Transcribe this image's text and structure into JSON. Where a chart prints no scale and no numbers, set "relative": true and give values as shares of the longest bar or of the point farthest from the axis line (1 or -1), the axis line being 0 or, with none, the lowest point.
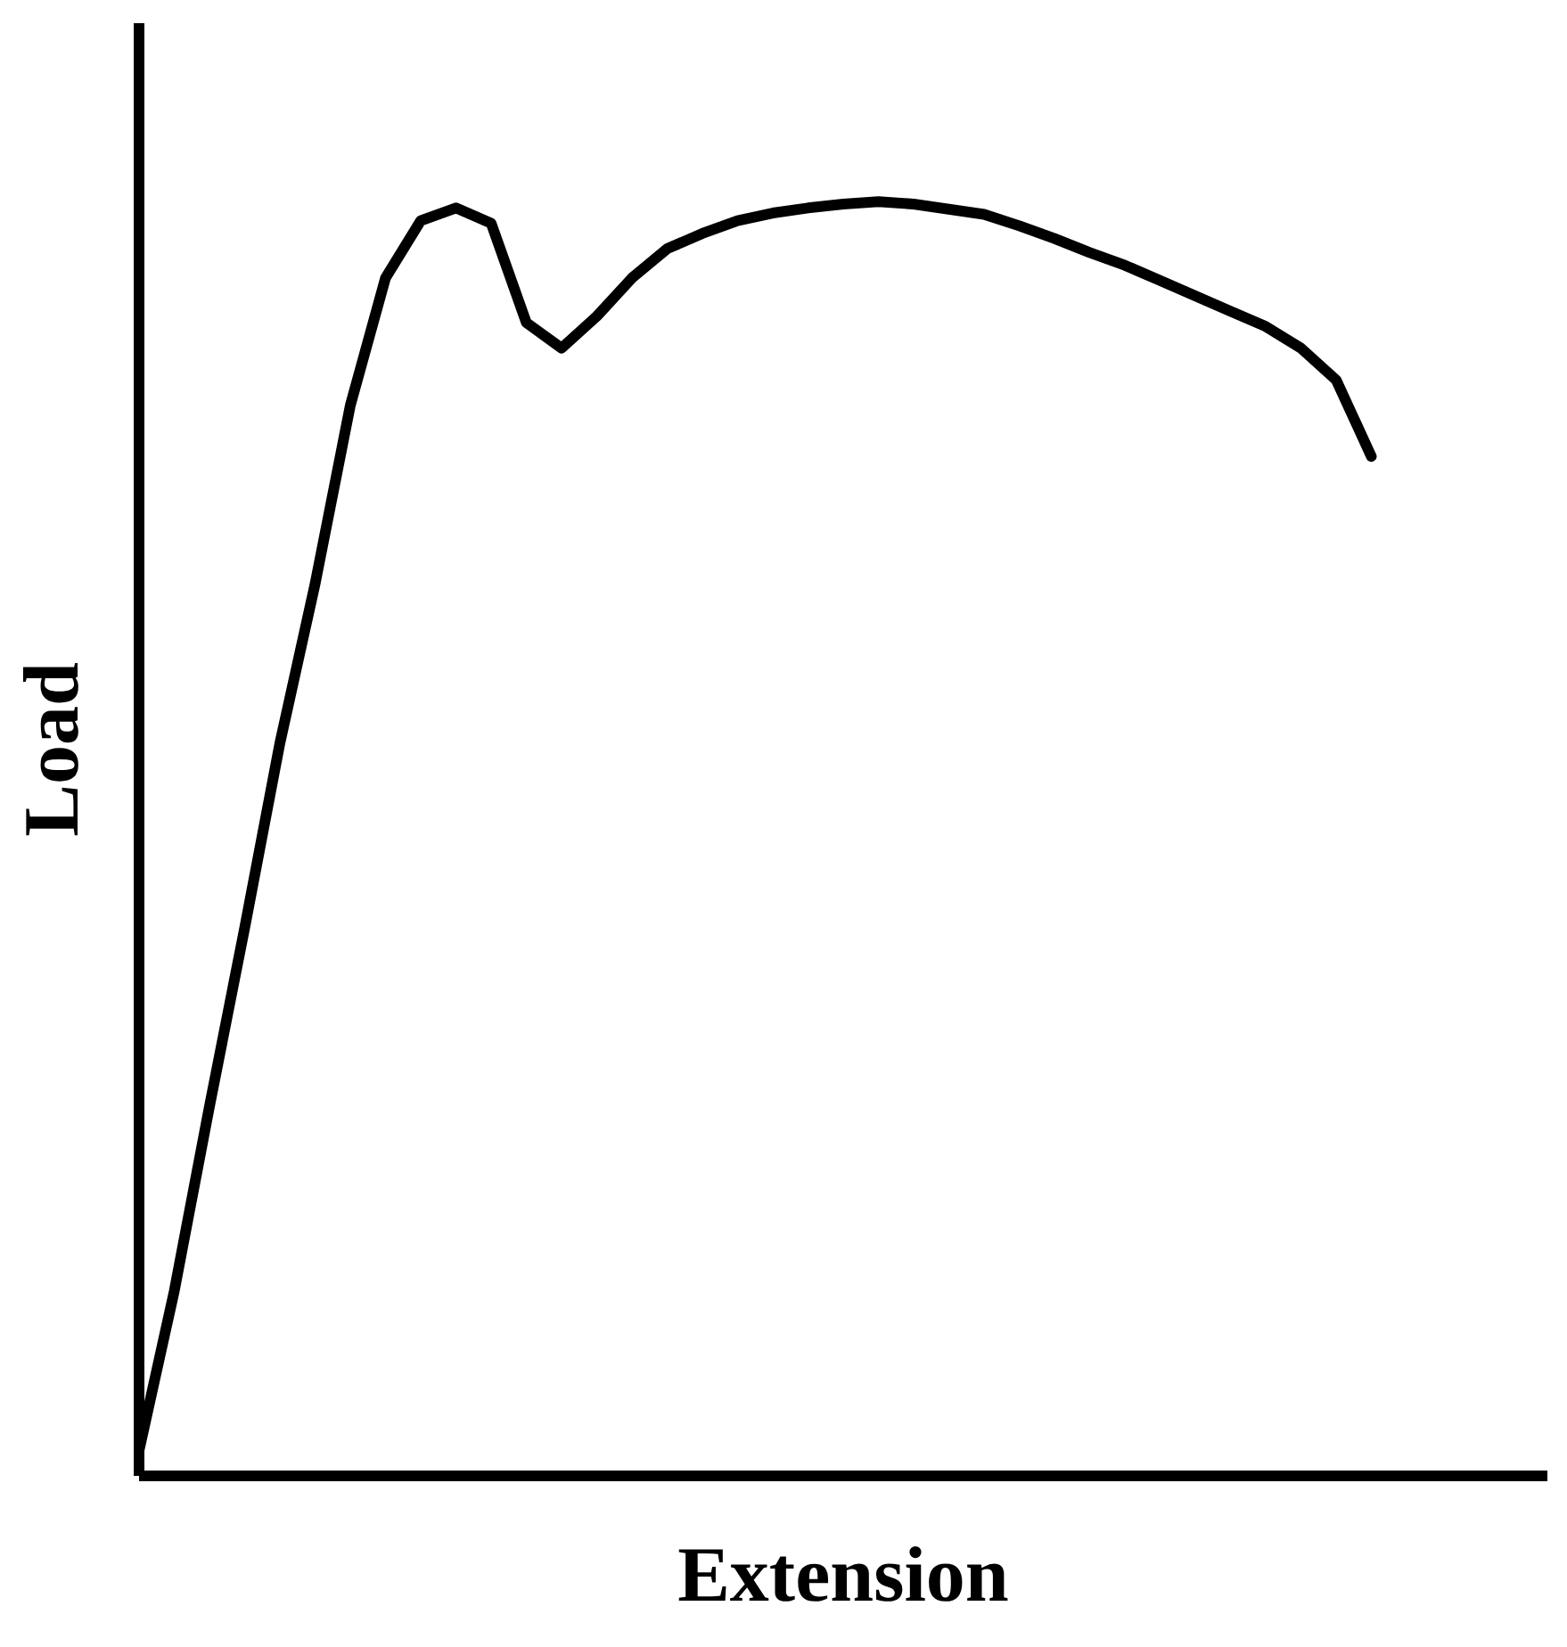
{
  "chart_data": {
    "type": "line",
    "relative": true,
    "xlabel": "Extension",
    "ylabel": "Load",
    "grid": false,
    "legend": false,
    "marker": "none",
    "line_style": "solid",
    "categories": [
      null,
      null,
      null,
      null,
      null,
      null,
      null,
      null,
      null,
      null,
      null,
      null,
      null,
      null,
      null,
      null,
      null,
      null,
      null,
      null,
      null,
      null,
      null,
      null,
      null,
      null,
      null,
      null,
      null,
      null,
      null,
      null,
      null,
      null,
      null,
      null,
      null,
      null,
      null,
      null,
      null
    ],
    "series": [
      {
        "color": "#000000",
        "values": [
          0.02,
          0.145,
          0.29,
          0.43,
          0.575,
          0.7,
          0.84,
          0.94,
          0.985,
          0.995,
          0.983,
          0.905,
          0.885,
          0.91,
          0.94,
          0.963,
          0.975,
          0.985,
          0.991,
          0.995,
          0.998,
          1,
          0.998,
          0.994,
          0.99,
          0.981,
          0.971,
          0.96,
          0.95,
          0.938,
          0.926,
          0.914,
          0.902,
          0.885,
          0.86,
          0.8,
          null,
          null,
          null,
          null,
          null
        ]
      }
    ]
  }
}
